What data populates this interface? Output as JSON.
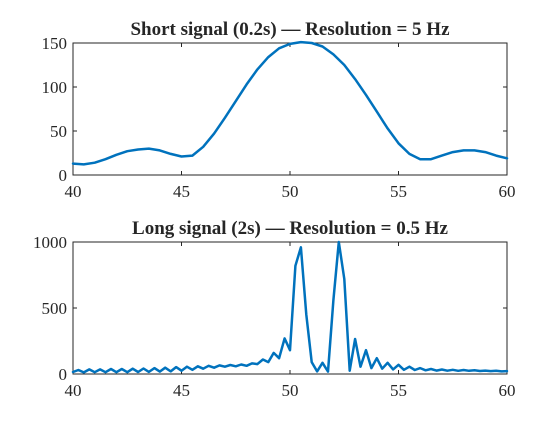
{
  "chart_data": [
    {
      "type": "line",
      "title": "Short signal (0.2s) — Resolution = 5 Hz",
      "xlabel": "",
      "ylabel": "",
      "xlim": [
        40,
        60
      ],
      "ylim": [
        0,
        150
      ],
      "xticks": [
        40,
        45,
        50,
        55,
        60
      ],
      "yticks": [
        0,
        50,
        100,
        150
      ],
      "grid": false,
      "series": [
        {
          "color": "#0072BD",
          "x": [
            40,
            40.5,
            41,
            41.5,
            42,
            42.5,
            43,
            43.5,
            44,
            44.5,
            45,
            45.5,
            46,
            46.5,
            47,
            47.5,
            48,
            48.5,
            49,
            49.5,
            50,
            50.5,
            51,
            51.5,
            52,
            52.5,
            53,
            53.5,
            54,
            54.5,
            55,
            55.5,
            56,
            56.5,
            57,
            57.5,
            58,
            58.5,
            59,
            59.5,
            60
          ],
          "y": [
            13,
            12,
            14,
            18,
            23,
            27,
            29,
            30,
            28,
            24,
            21,
            22,
            32,
            47,
            65,
            84,
            103,
            120,
            134,
            144,
            149,
            151,
            150,
            146,
            137,
            125,
            109,
            91,
            72,
            53,
            36,
            24,
            18,
            18,
            22,
            26,
            28,
            28,
            26,
            22,
            19
          ]
        }
      ]
    },
    {
      "type": "line",
      "title": "Long signal (2s) — Resolution = 0.5 Hz",
      "xlabel": "",
      "ylabel": "",
      "xlim": [
        40,
        60
      ],
      "ylim": [
        0,
        1000
      ],
      "xticks": [
        40,
        45,
        50,
        55,
        60
      ],
      "yticks": [
        0,
        500,
        1000
      ],
      "grid": false,
      "series": [
        {
          "color": "#0072BD",
          "x": [
            40,
            40.25,
            40.5,
            40.75,
            41,
            41.25,
            41.5,
            41.75,
            42,
            42.25,
            42.5,
            42.75,
            43,
            43.25,
            43.5,
            43.75,
            44,
            44.25,
            44.5,
            44.75,
            45,
            45.25,
            45.5,
            45.75,
            46,
            46.25,
            46.5,
            46.75,
            47,
            47.25,
            47.5,
            47.75,
            48,
            48.25,
            48.5,
            48.75,
            49,
            49.25,
            49.5,
            49.75,
            50,
            50.25,
            50.5,
            50.75,
            51,
            51.25,
            51.5,
            51.75,
            52,
            52.25,
            52.5,
            52.75,
            53,
            53.25,
            53.5,
            53.75,
            54,
            54.25,
            54.5,
            54.75,
            55,
            55.25,
            55.5,
            55.75,
            56,
            56.25,
            56.5,
            56.75,
            57,
            57.25,
            57.5,
            57.75,
            58,
            58.25,
            58.5,
            58.75,
            59,
            59.25,
            59.5,
            59.75,
            60
          ],
          "y": [
            15,
            30,
            12,
            35,
            14,
            35,
            14,
            38,
            14,
            38,
            14,
            40,
            15,
            42,
            16,
            45,
            18,
            48,
            20,
            52,
            25,
            55,
            32,
            58,
            40,
            62,
            48,
            65,
            55,
            68,
            58,
            72,
            62,
            80,
            75,
            110,
            90,
            160,
            120,
            270,
            180,
            820,
            960,
            450,
            90,
            20,
            85,
            18,
            560,
            1000,
            720,
            25,
            265,
            55,
            180,
            45,
            120,
            40,
            85,
            35,
            70,
            32,
            55,
            30,
            45,
            28,
            38,
            26,
            34,
            25,
            32,
            24,
            30,
            24,
            28,
            23,
            26,
            22,
            25,
            20,
            22
          ]
        }
      ]
    }
  ]
}
